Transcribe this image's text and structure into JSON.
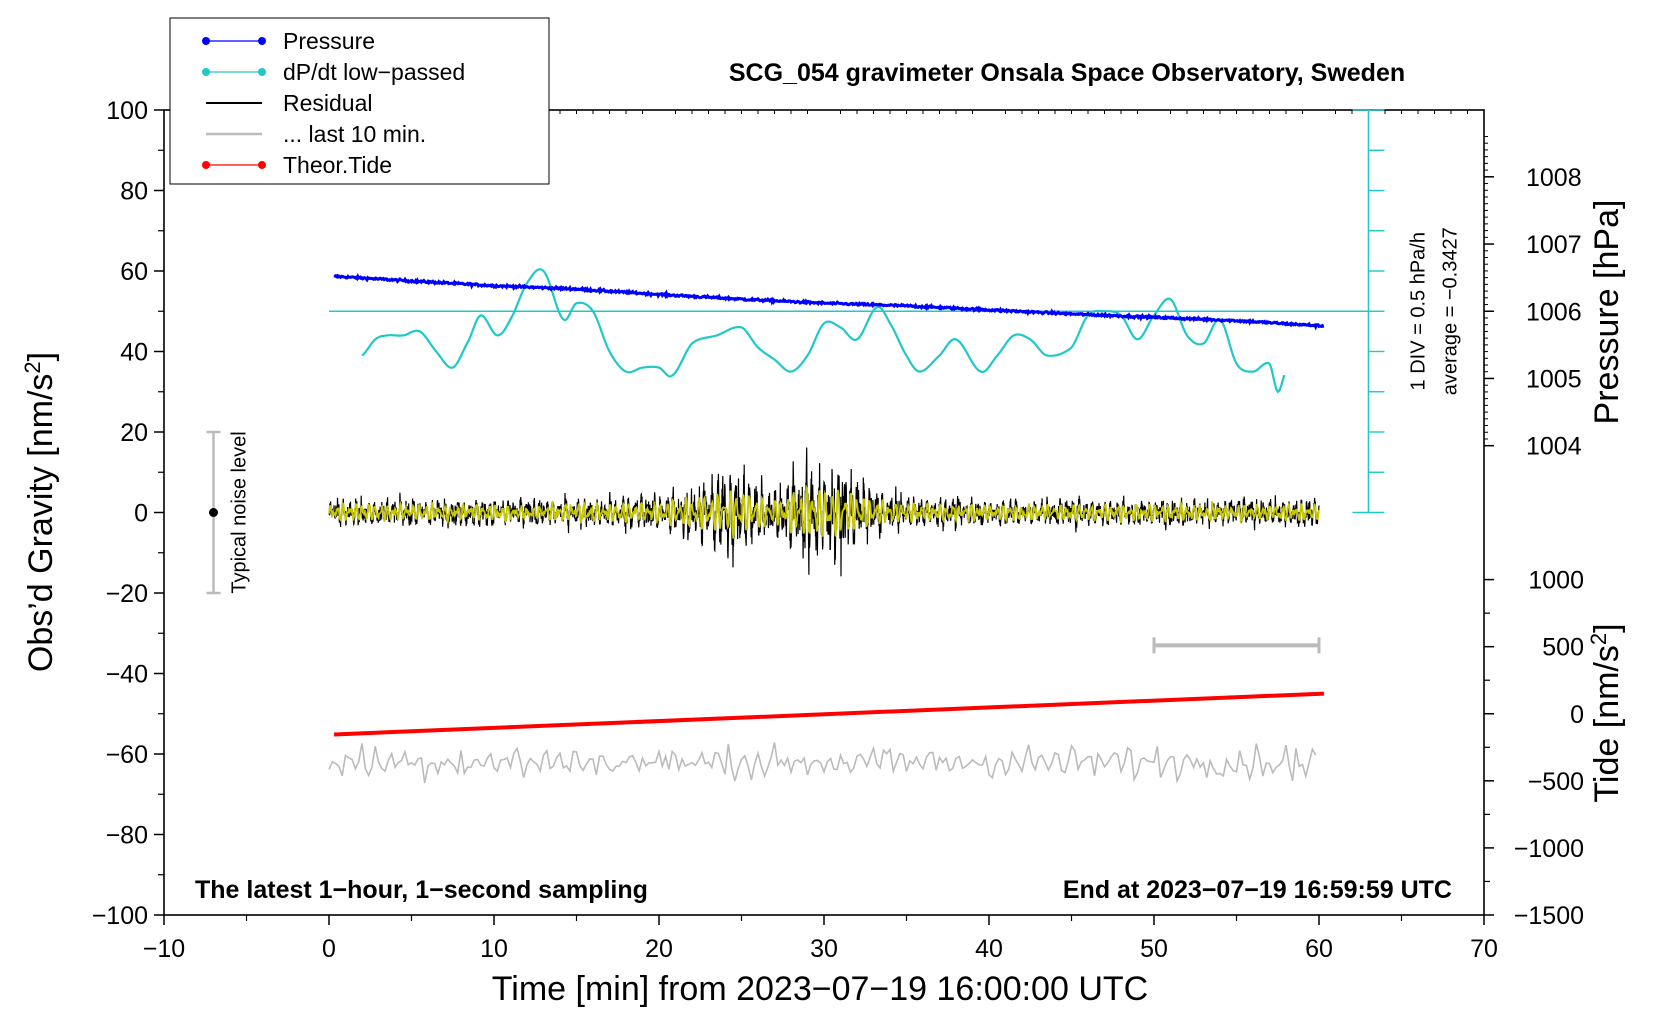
{
  "chart_data": {
    "type": "line",
    "title": "SCG_054 gravimeter Onsala Space Observatory, Sweden",
    "xlabel": "Time [min] from 2023−07−19 16:00:00 UTC",
    "ylabel_main": "Obs’d Gravity [nm/s",
    "ylabel_sup": "2",
    "ylabel_tail": "]",
    "ylabel_pressure": "Pressure [hPa]",
    "ylabel_tide_main": "Tide [nm/s",
    "ylabel_tide_sup": "2",
    "ylabel_tide_tail": "]",
    "xlim": [
      -10,
      70
    ],
    "ylim": [
      -100,
      100
    ],
    "x_ticks": [
      "−10",
      "0",
      "10",
      "20",
      "30",
      "40",
      "50",
      "60",
      "70"
    ],
    "x_tick_values": [
      -10,
      0,
      10,
      20,
      30,
      40,
      50,
      60,
      70
    ],
    "y_ticks": [
      "100",
      "80",
      "60",
      "40",
      "20",
      "0",
      "−20",
      "−40",
      "−60",
      "−80",
      "−100"
    ],
    "y_tick_values": [
      100,
      80,
      60,
      40,
      20,
      0,
      -20,
      -40,
      -60,
      -80,
      -100
    ],
    "pressure_ticks": [
      "1008",
      "1007",
      "1006",
      "1005",
      "1004"
    ],
    "pressure_tick_values": [
      1008,
      1007,
      1006,
      1005,
      1004
    ],
    "pressure_mapping": {
      "hpa_at_gravity_50": 1006,
      "gravity_per_hpa": 16.7
    },
    "tide_ticks": [
      "1000",
      "500",
      "0",
      "−500",
      "−1000",
      "−1500"
    ],
    "tide_tick_values": [
      1000,
      500,
      0,
      -500,
      -1000,
      -1500
    ],
    "tide_mapping": {
      "gravity_at_tide_0": -50,
      "gravity_per_nm": 0.03333
    },
    "legend": [
      {
        "label": "Pressure",
        "color": "#0000ff",
        "marker": true
      },
      {
        "label": "dP/dt low−passed",
        "color": "#20c8c8",
        "marker": true
      },
      {
        "label": "Residual",
        "color": "#000000",
        "marker": false
      },
      {
        "label": "... last 10 min.",
        "color": "#bbbbbb",
        "marker": false
      },
      {
        "label": "Theor.Tide",
        "color": "#ff0000",
        "marker": true
      }
    ],
    "colors": {
      "pressure": "#0000ff",
      "dpdt": "#20c8c8",
      "residual": "#000000",
      "residual_filtered": "#c8c800",
      "last10": "#bbbbbb",
      "tide": "#ff0000",
      "noise_bar": "#bbbbbb"
    },
    "series": [
      {
        "name": "Pressure",
        "unit": "hPa",
        "x": [
          0.3,
          5,
          10,
          15,
          20,
          25,
          30,
          35,
          40,
          45,
          50,
          55,
          60.3
        ],
        "values": [
          1006.52,
          1006.45,
          1006.38,
          1006.33,
          1006.25,
          1006.18,
          1006.12,
          1006.08,
          1006.02,
          1005.96,
          1005.91,
          1005.86,
          1005.78
        ]
      },
      {
        "name": "dP/dt low−passed",
        "unit": "gravity-axis units (1 DIV = 0.5 hPa/h, average level at 50)",
        "x": [
          2,
          2.8,
          3.5,
          4.5,
          5.5,
          6.5,
          7.5,
          8.5,
          9.2,
          10.2,
          11,
          12,
          13,
          14.2,
          15,
          16,
          17,
          18,
          19,
          20,
          20.8,
          22,
          23.5,
          25,
          26,
          27,
          28,
          29,
          30,
          31,
          32,
          33.2,
          34,
          35,
          35.8,
          37,
          38,
          39.5,
          40.5,
          41.5,
          42.5,
          43.5,
          45,
          46,
          47,
          48,
          49,
          50,
          51,
          52,
          53,
          54,
          55,
          56,
          57,
          57.5,
          58
        ],
        "values": [
          39,
          43,
          44,
          44,
          45,
          40,
          36,
          43,
          49,
          44,
          48,
          57,
          60,
          48,
          52,
          50,
          40,
          35,
          36,
          36,
          34,
          42,
          44,
          46,
          41,
          38,
          35,
          39,
          47,
          46,
          43,
          51,
          47,
          39,
          35,
          39,
          43,
          35,
          39,
          44,
          43,
          39,
          41,
          49,
          50,
          49,
          43,
          49,
          53,
          44,
          42,
          48,
          37,
          35,
          37,
          30,
          35
        ]
      },
      {
        "name": "Residual",
        "unit": "nm/s^2",
        "x_range": [
          0,
          60
        ],
        "envelope_x": [
          0,
          15,
          20,
          23,
          24.5,
          27,
          29,
          31,
          33,
          36,
          40,
          45,
          50,
          55,
          60
        ],
        "envelope_amp": [
          3,
          3,
          4,
          7,
          10,
          5,
          11,
          10,
          5,
          3,
          3,
          3,
          3,
          3,
          3
        ]
      },
      {
        "name": "... last 10 min.",
        "unit": "nm/s^2 (offset, plotted near −62)",
        "x_range": [
          0,
          60
        ],
        "level": -62,
        "amplitude": 4
      },
      {
        "name": "Theor.Tide",
        "unit": "nm/s^2",
        "x": [
          0.3,
          60.3
        ],
        "values": [
          -155,
          150
        ]
      }
    ],
    "noise_bar": {
      "label": "Typical noise level",
      "x": -7,
      "y_center": 0,
      "y_low": -20,
      "y_high": 20
    },
    "scale_bar": {
      "x_start": 50,
      "x_end": 60,
      "y": -33
    },
    "dpdt_axis": {
      "x": 63,
      "y_bottom": 0,
      "y_top": 100,
      "average_level": 50,
      "div_label": "1 DIV = 0.5 hPa/h",
      "average_label": "average = −0.3427"
    },
    "annotations": {
      "bottom_left": "The latest 1−hour, 1−second sampling",
      "bottom_right": "End at 2023−07−19 16:59:59 UTC"
    }
  }
}
